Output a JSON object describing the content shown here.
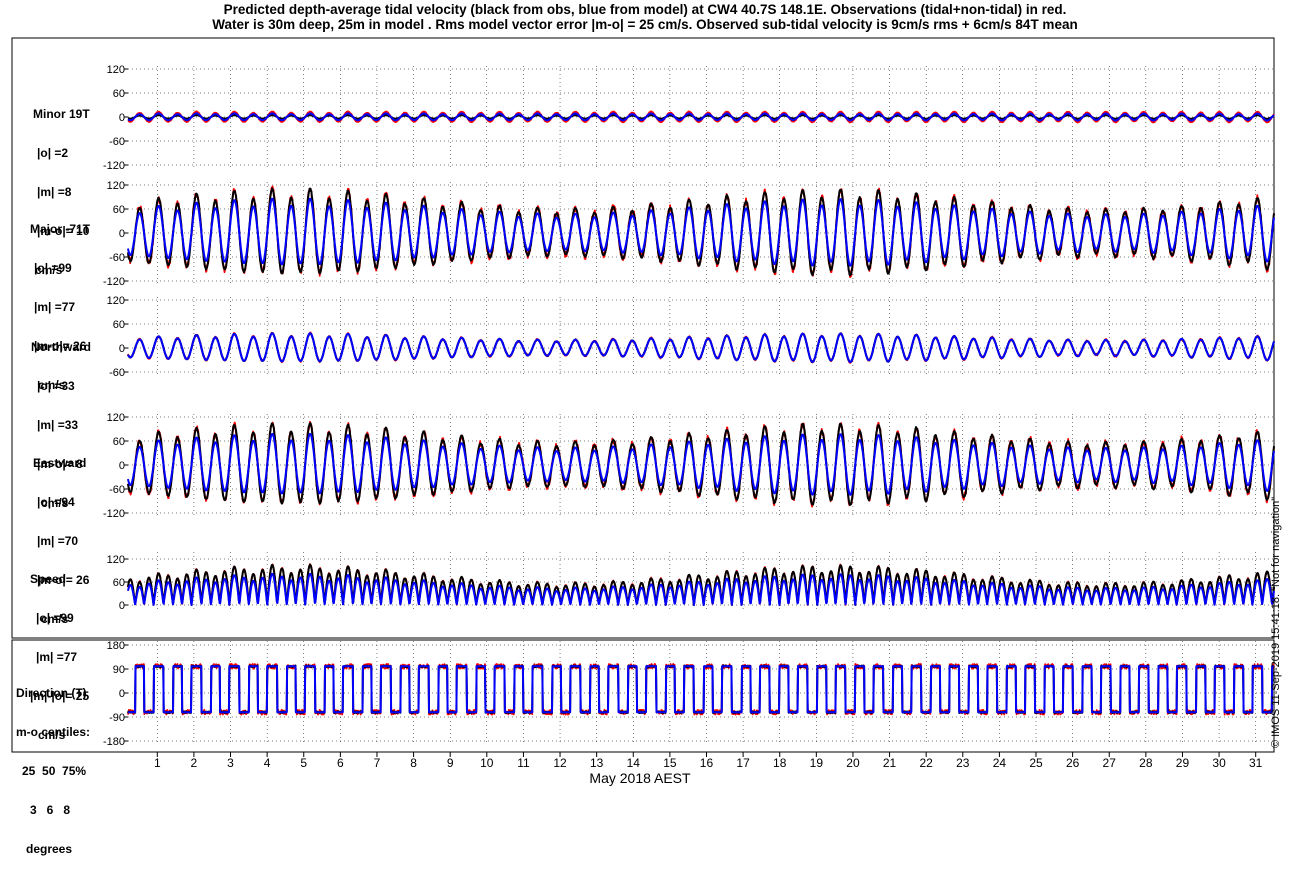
{
  "figure": {
    "title_line1": "Predicted depth-average tidal velocity (black from obs, blue from model) at CW4 40.7S 148.1E. Observations (tidal+non-tidal) in red.",
    "title_line2": "Water is 30m deep, 25m in model . Rms model vector error |m-o| = 25 cm/s. Observed sub-tidal velocity is 9cm/s rms + 6cm/s 84T mean",
    "xlabel": "May 2018 AEST",
    "footer": "© IMOS 11-Sep-2019 15:41:18.  \"Not for navigation\"",
    "colors": {
      "observed_tidal": "#000000",
      "model": "#0000ff",
      "observations": "#ff0000",
      "frame": "#000000",
      "grid": "#000000"
    }
  },
  "chart_data": [
    {
      "type": "line",
      "panel": "minor",
      "label": [
        "Minor 19T",
        "|o| =2",
        "|m| =8",
        "|m-o|= 10",
        "cm/s"
      ],
      "ylim": [
        -120,
        120
      ],
      "yticks": [
        -120,
        -60,
        0,
        60,
        120
      ],
      "x_range_days": [
        0.2,
        31.5
      ],
      "xticks": [
        1,
        2,
        3,
        4,
        5,
        6,
        7,
        8,
        9,
        10,
        11,
        12,
        13,
        14,
        15,
        16,
        17,
        18,
        19,
        20,
        21,
        22,
        23,
        24,
        25,
        26,
        27,
        28,
        29,
        30,
        31
      ],
      "grid": "dotted",
      "series": [
        {
          "color": "black",
          "amplitude": 2,
          "trace": "observed tidal fit"
        },
        {
          "color": "blue",
          "amplitude": 8,
          "trace": "model"
        },
        {
          "color": "red",
          "amplitude": 10,
          "trace": "observations"
        }
      ]
    },
    {
      "type": "line",
      "panel": "major",
      "label": [
        "Major -71T",
        "|o| =99",
        "|m| =77",
        "|m-o|= 26",
        "cm/s"
      ],
      "ylim": [
        -120,
        120
      ],
      "yticks": [
        -120,
        -60,
        0,
        60,
        120
      ],
      "grid": "dotted",
      "series": [
        {
          "color": "black",
          "amplitude": 99
        },
        {
          "color": "blue",
          "amplitude": 77
        },
        {
          "color": "red",
          "amplitude": 99
        }
      ]
    },
    {
      "type": "line",
      "panel": "northward",
      "label": [
        "Northward",
        "|o| =33",
        "|m| =33",
        "|m-o|= 8",
        "cm/s"
      ],
      "ylim": [
        -60,
        120
      ],
      "yticks": [
        -60,
        0,
        60,
        120
      ],
      "grid": "dotted",
      "series": [
        {
          "color": "black",
          "amplitude": 33
        },
        {
          "color": "blue",
          "amplitude": 33
        },
        {
          "color": "red",
          "amplitude": 33
        }
      ]
    },
    {
      "type": "line",
      "panel": "eastward",
      "label": [
        "Eastward",
        "|o| =94",
        "|m| =70",
        "|m-o|= 26",
        "cm/s"
      ],
      "ylim": [
        -120,
        120
      ],
      "yticks": [
        -120,
        -60,
        0,
        60,
        120
      ],
      "grid": "dotted",
      "series": [
        {
          "color": "black",
          "amplitude": 94
        },
        {
          "color": "blue",
          "amplitude": 70
        },
        {
          "color": "red",
          "amplitude": 94
        }
      ]
    },
    {
      "type": "line",
      "panel": "speed",
      "label": [
        "Speed",
        "|o| =99",
        "|m| =77",
        "|m|-|o|= 25",
        "cm/s"
      ],
      "ylim": [
        0,
        120
      ],
      "yticks": [
        0,
        60,
        120
      ],
      "grid": "dotted",
      "series": [
        {
          "color": "black",
          "amplitude": 99
        },
        {
          "color": "blue",
          "amplitude": 77
        },
        {
          "color": "red",
          "amplitude": 99
        }
      ]
    },
    {
      "type": "line",
      "panel": "direction",
      "label": [
        "Direction (T)",
        "m-o centiles:",
        "25  50  75%",
        "3   6   8",
        "degrees"
      ],
      "ylim": [
        -180,
        180
      ],
      "yticks": [
        -180,
        -90,
        0,
        90,
        180
      ],
      "grid": "dotted",
      "centiles": {
        "p25": 3,
        "p50": 6,
        "p75": 8
      },
      "series": [
        {
          "color": "black",
          "flip_between": [
            -71,
            109
          ]
        },
        {
          "color": "blue",
          "flip_between": [
            -71,
            109
          ]
        },
        {
          "color": "red",
          "flip_between": [
            -71,
            109
          ]
        }
      ]
    }
  ]
}
